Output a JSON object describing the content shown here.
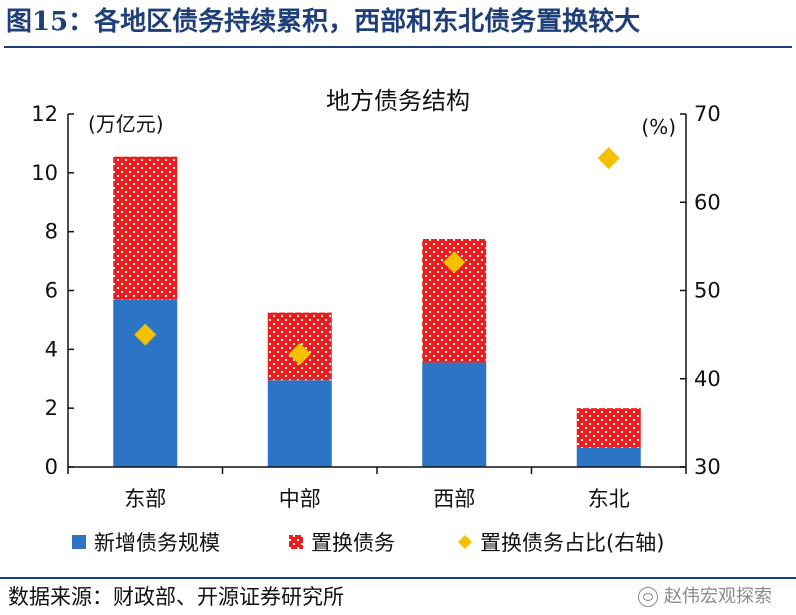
{
  "figure_title": "图15：各地区债务持续累积，西部和东北债务置换较大",
  "source": "数据来源：财政部、开源证券研究所",
  "watermark": "赵伟宏观探索",
  "colors": {
    "title": "#1f3f7a",
    "new_debt": "#2c74c4",
    "swap_debt": "#ee1c1c",
    "swap_dots": "#ffffff",
    "swap_ratio": "#f5c000"
  },
  "chart_data": {
    "type": "bar",
    "stacked": true,
    "title": "地方债务结构",
    "categories": [
      "东部",
      "中部",
      "西部",
      "东北"
    ],
    "left_axis": {
      "unit_label": "(万亿元)",
      "ylim": [
        0,
        12
      ],
      "ticks": [
        0,
        2,
        4,
        6,
        8,
        10,
        12
      ]
    },
    "right_axis": {
      "unit_label": "(%)",
      "ylim": [
        30,
        70
      ],
      "ticks": [
        30,
        40,
        50,
        60,
        70
      ]
    },
    "series": [
      {
        "name": "新增债务规模",
        "type": "bar",
        "axis": "left",
        "values": [
          5.7,
          2.95,
          3.55,
          0.65
        ]
      },
      {
        "name": "置换债务",
        "type": "bar",
        "axis": "left",
        "values": [
          4.85,
          2.3,
          4.2,
          1.35
        ]
      },
      {
        "name": "置换债务占比(右轴)",
        "type": "scatter",
        "axis": "right",
        "values": [
          45.0,
          42.8,
          53.2,
          65.0
        ]
      }
    ],
    "legend_position": "bottom",
    "grid": false
  }
}
